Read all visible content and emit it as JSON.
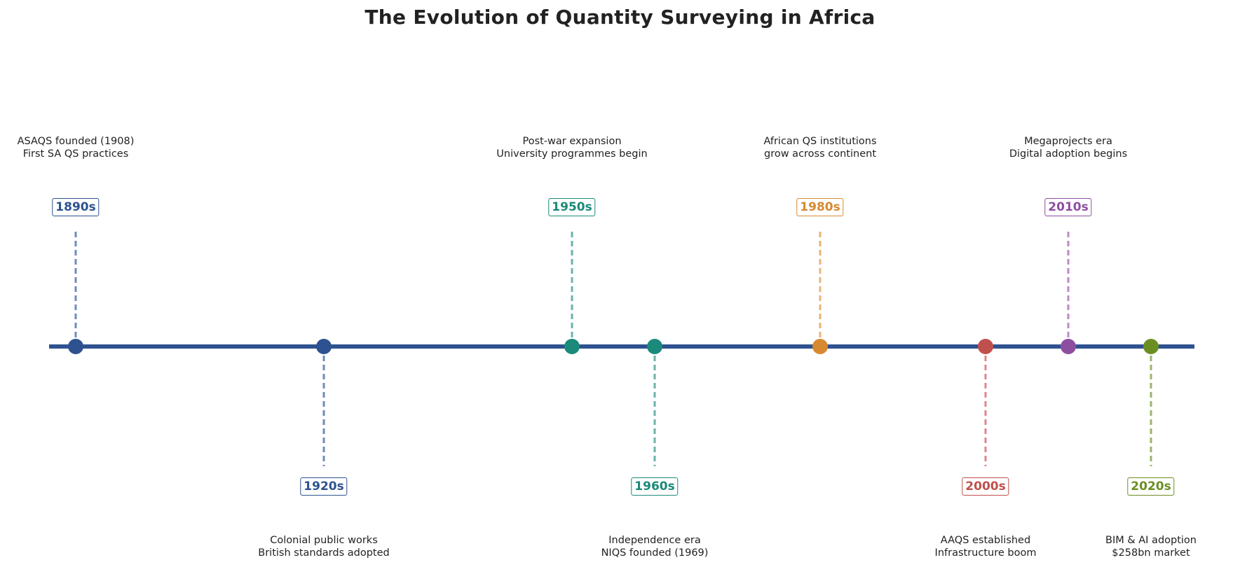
{
  "title": "The Evolution of Quantity Surveying in Africa",
  "axis_color": "#2e528f",
  "chart_data": {
    "type": "timeline",
    "events": [
      {
        "year": "1890s",
        "lines": [
          "ASAQS founded (1908)",
          "First SA QS practices"
        ],
        "side": "above",
        "color": "#2e528f",
        "stem_color": "#6e8bbb"
      },
      {
        "year": "1920s",
        "lines": [
          "Colonial public works",
          "British standards adopted"
        ],
        "side": "below",
        "color": "#2e528f",
        "stem_color": "#6e8bbb"
      },
      {
        "year": "1950s",
        "lines": [
          "Post-war expansion",
          "University programmes begin"
        ],
        "side": "above",
        "color": "#1b8a7a",
        "stem_color": "#6bb3a8"
      },
      {
        "year": "1960s",
        "lines": [
          "Independence era",
          "NIQS founded (1969)"
        ],
        "side": "below",
        "color": "#1b8a7a",
        "stem_color": "#6bb3a8"
      },
      {
        "year": "1980s",
        "lines": [
          "African QS institutions",
          "grow across continent"
        ],
        "side": "above",
        "color": "#d6892f",
        "stem_color": "#e9b27a"
      },
      {
        "year": "2000s",
        "lines": [
          "AAQS established",
          "Infrastructure boom"
        ],
        "side": "below",
        "color": "#c0504d",
        "stem_color": "#e0868b"
      },
      {
        "year": "2010s",
        "lines": [
          "Megaprojects era",
          "Digital adoption begins"
        ],
        "side": "above",
        "color": "#8e4ea0",
        "stem_color": "#bc8ac8"
      },
      {
        "year": "2020s",
        "lines": [
          "BIM & AI adoption",
          "$258bn market"
        ],
        "side": "below",
        "color": "#6b8e23",
        "stem_color": "#9bb46a"
      }
    ]
  }
}
